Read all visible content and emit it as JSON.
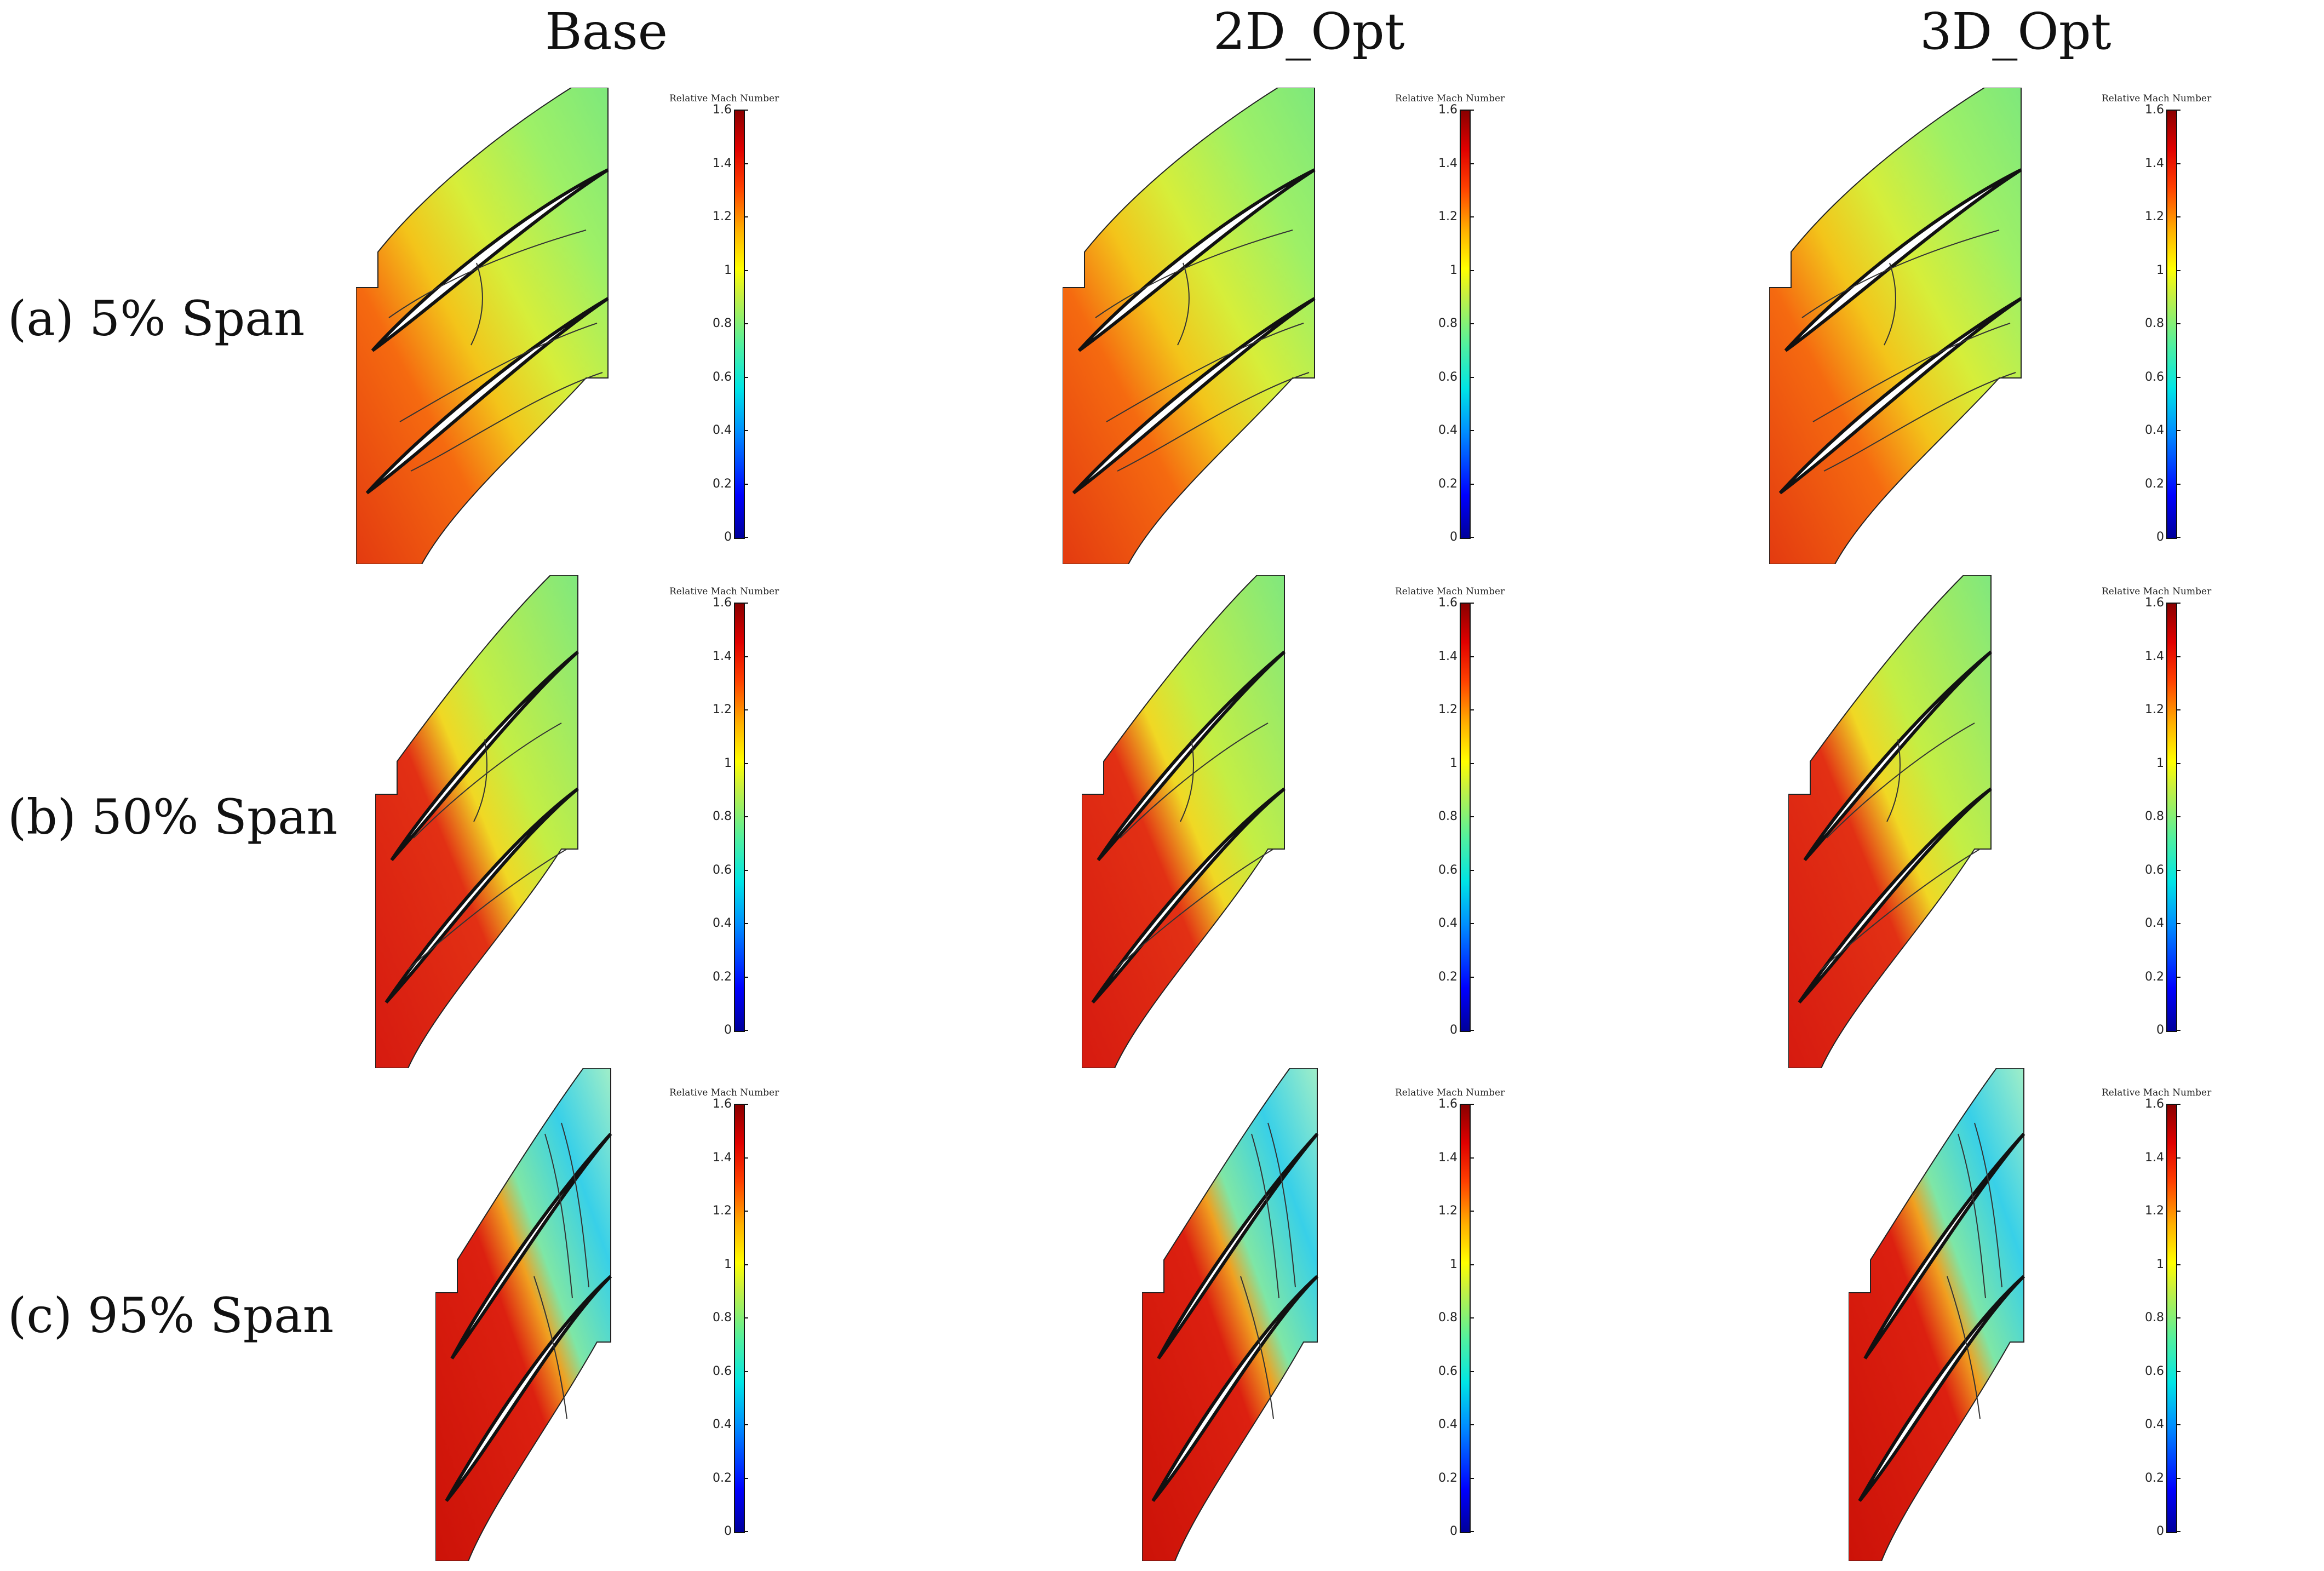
{
  "columns": [
    "Base",
    "2D_Opt",
    "3D_Opt"
  ],
  "rows": [
    "(a) 5% Span",
    "(b) 50% Span",
    "(c) 95% Span"
  ],
  "colorbar": {
    "title": "Relative Mach Number",
    "ticks": [
      "1.6",
      "1.4",
      "1.2",
      "1",
      "0.8",
      "0.6",
      "0.4",
      "0.2",
      "0"
    ]
  },
  "colors": {
    "low": "#0000ff",
    "mid": "#ffff00",
    "high": "#e00000"
  }
}
